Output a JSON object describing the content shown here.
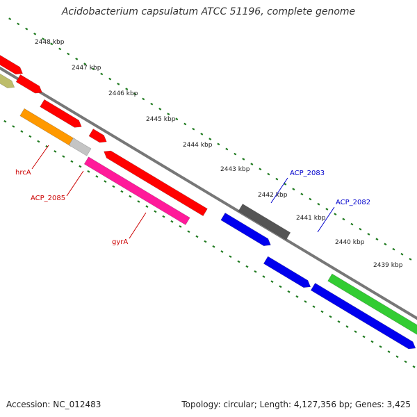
{
  "title": "Acidobacterium capsulatum ATCC 51196, complete genome",
  "accession": "Accession: NC_012483",
  "summary": "Topology: circular; Length: 4,127,356 bp; Genes: 3,425",
  "ticks": [
    "2448 kbp",
    "2447 kbp",
    "2446 kbp",
    "2445 kbp",
    "2444 kbp",
    "2443 kbp",
    "2442 kbp",
    "2441 kbp",
    "2440 kbp",
    "2439 kbp"
  ],
  "gene_labels": [
    {
      "name": "hrcA",
      "color": "#cc0000"
    },
    {
      "name": "ACP_2085",
      "color": "#cc0000"
    },
    {
      "name": "gyrA",
      "color": "#cc0000"
    },
    {
      "name": "ACP_2083",
      "color": "#0000cc"
    },
    {
      "name": "ACP_2082",
      "color": "#0000cc"
    }
  ],
  "colors": {
    "red": "#ff0000",
    "olive": "#bdbd6a",
    "orange": "#ff9900",
    "grey": "#c4c4c4",
    "pink": "#ff1a9a",
    "dark": "#555555",
    "blue": "#0000ee",
    "green": "#33cc33",
    "backbone": "#777777",
    "dots": "#1f7a1f"
  }
}
